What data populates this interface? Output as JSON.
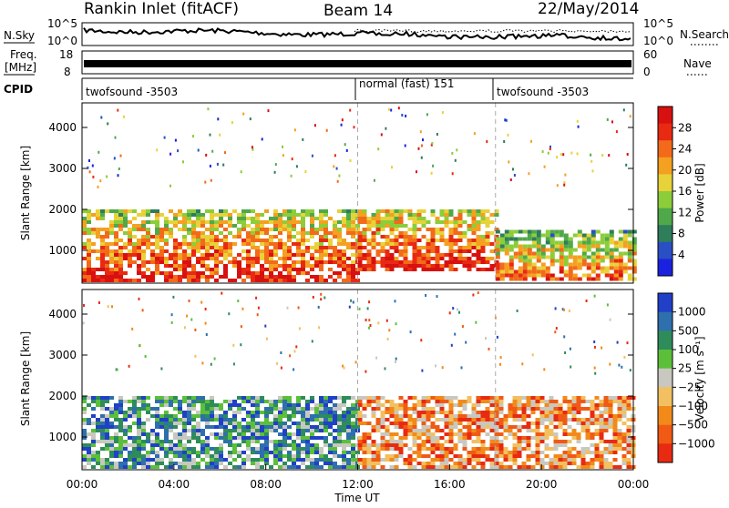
{
  "header": {
    "station": "Rankin Inlet (fitACF)",
    "beam": "Beam 14",
    "date": "22/May/2014"
  },
  "params": {
    "nsky_label": "N.Sky",
    "nsearch_label": "N.Search",
    "freq_label_line1": "Freq.",
    "freq_label_line2": "[MHz]",
    "nave_label": "Nave",
    "cpid_label": "CPID",
    "left_ticks_top": [
      "10^5",
      "10^0"
    ],
    "right_ticks_top": [
      "10^5",
      "10^0"
    ],
    "left_ticks_freq": [
      "18",
      "8"
    ],
    "right_ticks_nave": [
      "60",
      "0"
    ],
    "cpid_segments": [
      {
        "label": "twofsound -3503",
        "start_hour": 0
      },
      {
        "label": "normal (fast) 151",
        "start_hour": 12
      },
      {
        "label": "twofsound -3503",
        "start_hour": 18
      }
    ]
  },
  "chart_data": [
    {
      "type": "heatmap",
      "name": "power",
      "ylabel": "Slant Range [km]",
      "xlabel": "",
      "xlim_hours": [
        0,
        24
      ],
      "ylim": [
        200,
        4600
      ],
      "yticks": [
        1000,
        2000,
        3000,
        4000
      ],
      "colorbar": {
        "label": "Power [dB]",
        "ticks": [
          "4",
          "8",
          "12",
          "16",
          "20",
          "24",
          "28"
        ],
        "colors": [
          "#1a22e0",
          "#2a4fc4",
          "#2e7d5b",
          "#4fa84a",
          "#8ccd3a",
          "#e8d23a",
          "#f4a020",
          "#f26a1a",
          "#e82a12",
          "#d81010"
        ]
      },
      "bands": [
        {
          "from_hour": 0,
          "to_hour": 12,
          "range_from": 300,
          "range_to": 2000,
          "level": 0.75
        },
        {
          "from_hour": 12,
          "to_hour": 18,
          "range_from": 500,
          "range_to": 2000,
          "level": 0.85
        },
        {
          "from_hour": 18,
          "to_hour": 24,
          "range_from": 300,
          "range_to": 1500,
          "level": 0.55
        }
      ]
    },
    {
      "type": "heatmap",
      "name": "velocity",
      "ylabel": "Slant Range [km]",
      "xlabel": "Time UT",
      "xlim_hours": [
        0,
        24
      ],
      "ylim": [
        200,
        4600
      ],
      "yticks": [
        1000,
        2000,
        3000,
        4000
      ],
      "xticks": [
        "00:00",
        "04:00",
        "08:00",
        "12:00",
        "16:00",
        "20:00",
        "00:00"
      ],
      "colorbar": {
        "label": "Velocity [m s⁻¹]",
        "ticks": [
          "1000",
          "500",
          "100",
          "25",
          "−25",
          "−100",
          "−500",
          "−1000"
        ],
        "colors": [
          "#2040c8",
          "#2e6fae",
          "#2e8c5a",
          "#5cbf3a",
          "#c8c8c0",
          "#f2c060",
          "#f28a1a",
          "#f05a14",
          "#e82a12"
        ]
      },
      "bands": [
        {
          "from_hour": 0,
          "to_hour": 12,
          "range_from": 300,
          "range_to": 2000,
          "polarity": "positive"
        },
        {
          "from_hour": 12,
          "to_hour": 24,
          "range_from": 300,
          "range_to": 2000,
          "polarity": "negative"
        }
      ]
    }
  ]
}
